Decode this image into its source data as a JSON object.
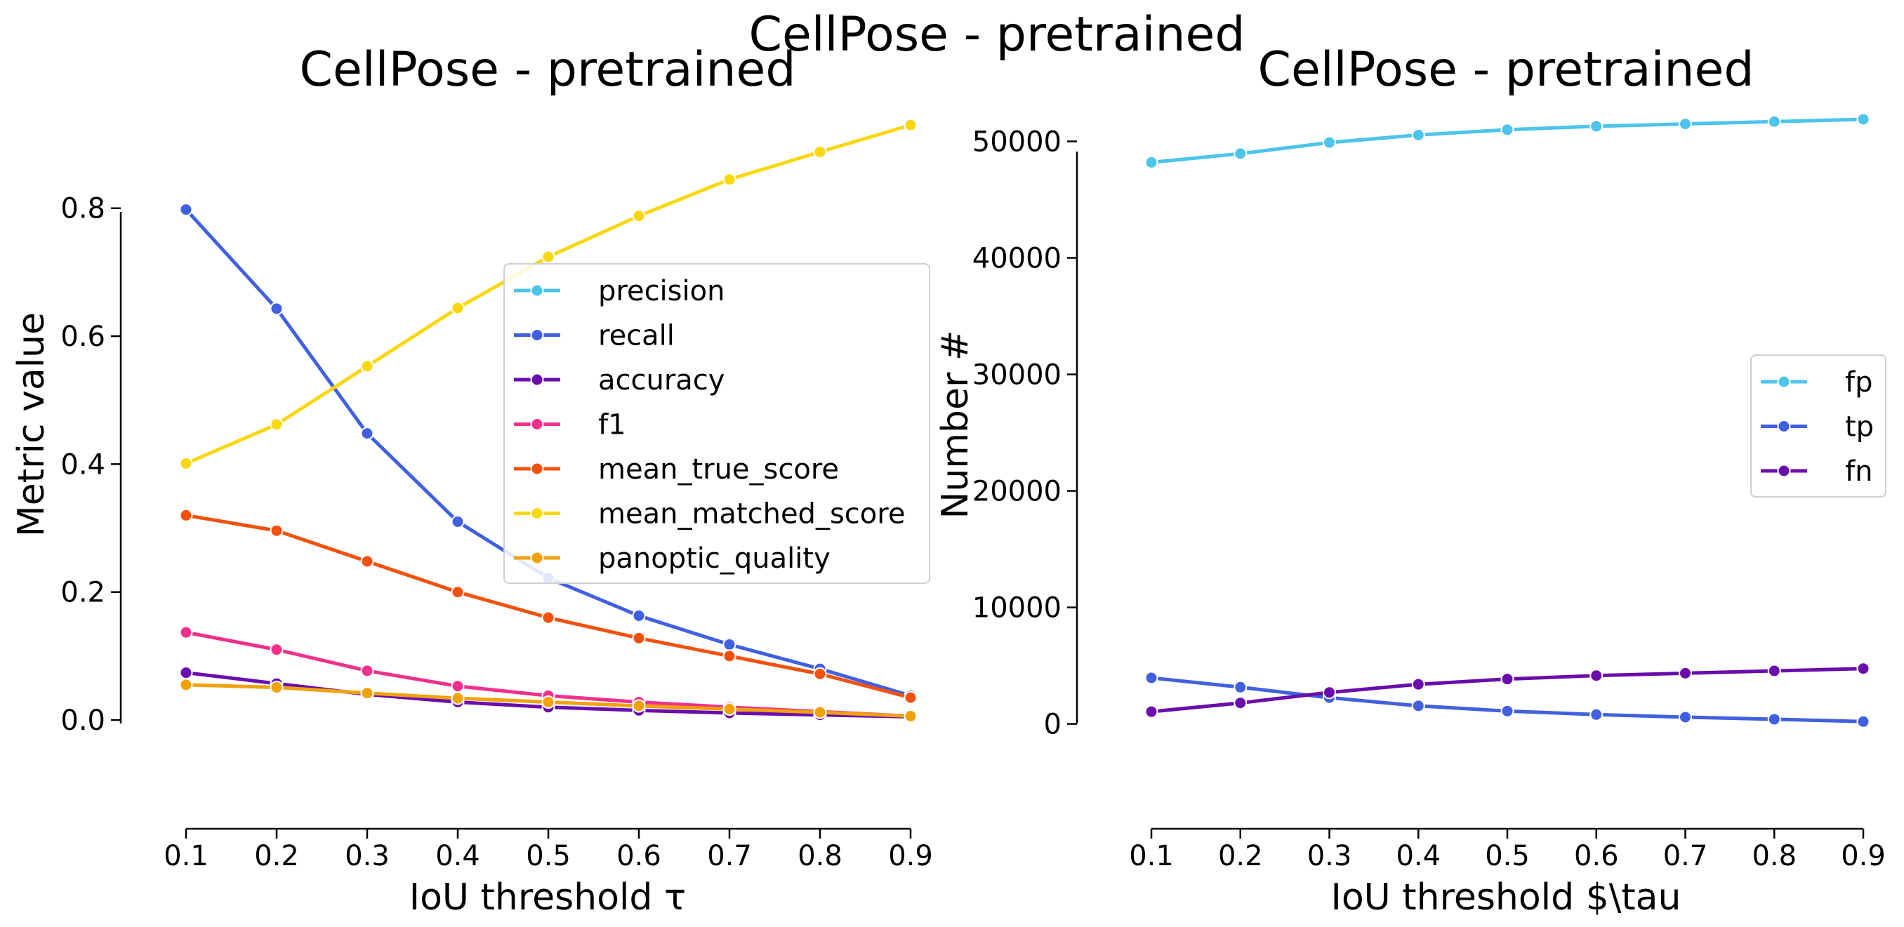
{
  "figure": {
    "suptitle": "CellPose - pretrained"
  },
  "chart_data": [
    {
      "type": "line",
      "title": "CellPose - pretrained",
      "xlabel": "IoU threshold τ",
      "ylabel": "Metric value",
      "x": [
        0.1,
        0.2,
        0.3,
        0.4,
        0.5,
        0.6,
        0.7,
        0.8,
        0.9
      ],
      "xticks": [
        "0.1",
        "0.2",
        "0.3",
        "0.4",
        "0.5",
        "0.6",
        "0.7",
        "0.8",
        "0.9"
      ],
      "yticks": [
        "0.0",
        "0.2",
        "0.4",
        "0.6",
        "0.8"
      ],
      "ytick_values": [
        0,
        0.2,
        0.4,
        0.6,
        0.8
      ],
      "ylim": [
        -0.17,
        0.95
      ],
      "xlim": [
        0.1,
        0.9
      ],
      "legend_position": "center-right",
      "grid": false,
      "series": [
        {
          "name": "precision",
          "color": "#4cc4ec",
          "values": [
            null,
            null,
            null,
            null,
            null,
            null,
            null,
            null,
            null
          ]
        },
        {
          "name": "recall",
          "color": "#4160e0",
          "values": [
            0.798,
            0.643,
            0.448,
            0.31,
            0.222,
            0.163,
            0.118,
            0.08,
            0.038
          ]
        },
        {
          "name": "accuracy",
          "color": "#6a0dad",
          "values": [
            0.074,
            0.057,
            0.04,
            0.028,
            0.02,
            0.015,
            0.011,
            0.008,
            0.005
          ]
        },
        {
          "name": "f1",
          "color": "#f0308c",
          "values": [
            0.137,
            0.11,
            0.077,
            0.053,
            0.038,
            0.028,
            0.02,
            0.013,
            0.006
          ]
        },
        {
          "name": "mean_true_score",
          "color": "#f2510d",
          "values": [
            0.32,
            0.296,
            0.248,
            0.2,
            0.16,
            0.128,
            0.1,
            0.072,
            0.035
          ]
        },
        {
          "name": "mean_matched_score",
          "color": "#fad70f",
          "values": [
            0.401,
            0.462,
            0.553,
            0.644,
            0.724,
            0.788,
            0.845,
            0.888,
            0.93
          ]
        },
        {
          "name": "panoptic_quality",
          "color": "#f0a10c",
          "values": [
            0.055,
            0.051,
            0.042,
            0.034,
            0.028,
            0.022,
            0.017,
            0.012,
            0.006
          ]
        }
      ]
    },
    {
      "type": "line",
      "title": "CellPose - pretrained",
      "xlabel": "IoU threshold $\\tau",
      "ylabel": "Number #",
      "x": [
        0.1,
        0.2,
        0.3,
        0.4,
        0.5,
        0.6,
        0.7,
        0.8,
        0.9
      ],
      "xticks": [
        "0.1",
        "0.2",
        "0.3",
        "0.4",
        "0.5",
        "0.6",
        "0.7",
        "0.8",
        "0.9"
      ],
      "yticks": [
        "0",
        "10000",
        "20000",
        "30000",
        "40000",
        "50000"
      ],
      "ytick_values": [
        0,
        10000,
        20000,
        30000,
        40000,
        50000
      ],
      "ylim": [
        -9000,
        52500
      ],
      "xlim": [
        0.1,
        0.9
      ],
      "legend_position": "center-right",
      "grid": false,
      "series": [
        {
          "name": "fp",
          "color": "#4cc4ec",
          "values": [
            48200,
            48950,
            49900,
            50550,
            51000,
            51300,
            51500,
            51700,
            51900
          ]
        },
        {
          "name": "tp",
          "color": "#4160e0",
          "values": [
            3950,
            3150,
            2250,
            1550,
            1100,
            800,
            580,
            400,
            200
          ]
        },
        {
          "name": "fn",
          "color": "#6a0dad",
          "values": [
            1050,
            1800,
            2700,
            3400,
            3850,
            4150,
            4350,
            4550,
            4750
          ]
        }
      ]
    }
  ]
}
